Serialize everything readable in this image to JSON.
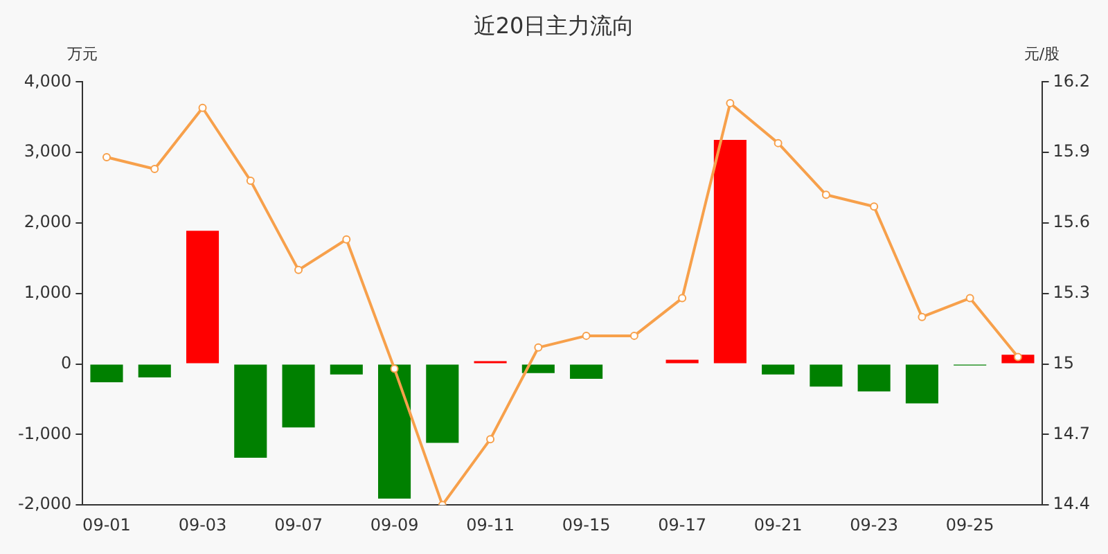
{
  "chart_data": {
    "type": "bar",
    "title": "近20日主力流向",
    "ylabel": "万元",
    "y2label": "元/股",
    "categories": [
      "09-01",
      null,
      "09-03",
      null,
      "09-07",
      null,
      "09-09",
      null,
      "09-11",
      null,
      "09-15",
      null,
      "09-17",
      null,
      "09-21",
      null,
      "09-23",
      null,
      "09-25",
      null
    ],
    "series": [
      {
        "values": [
          -260,
          -190,
          1890,
          -1330,
          -900,
          -150,
          -1910,
          -1120,
          40,
          -130,
          -210,
          null,
          60,
          3180,
          -150,
          -320,
          -390,
          -560,
          -20,
          130
        ],
        "colors": [
          "#008000",
          "#008000",
          "#ff0000",
          "#008000",
          "#008000",
          "#008000",
          "#008000",
          "#008000",
          "#ff0000",
          "#008000",
          "#008000",
          "#008000",
          "#ff0000",
          "#ff0000",
          "#008000",
          "#008000",
          "#008000",
          "#008000",
          "#008000",
          "#ff0000"
        ]
      },
      {
        "type": "line",
        "axis": "y2",
        "color": "#f7a04b",
        "marker": "circle",
        "values": [
          15.88,
          15.83,
          16.09,
          15.78,
          15.4,
          15.53,
          14.98,
          14.4,
          14.68,
          15.07,
          15.12,
          15.12,
          15.28,
          16.11,
          15.94,
          15.72,
          15.67,
          15.2,
          15.28,
          15.03
        ]
      }
    ],
    "ylim": [
      -2000,
      4000
    ],
    "yticks": [
      {
        "value": -2000,
        "label": "-2,000"
      },
      {
        "value": -1000,
        "label": "-1,000"
      },
      0,
      {
        "value": 1000,
        "label": "1,000"
      },
      {
        "value": 2000,
        "label": "2,000"
      },
      {
        "value": 3000,
        "label": "3,000"
      },
      {
        "value": 4000,
        "label": "4,000"
      }
    ],
    "y2lim": [
      14.4,
      16.2
    ],
    "y2ticks": [
      14.4,
      14.7,
      15,
      15.3,
      15.6,
      15.9,
      16.2
    ],
    "grid": false,
    "legend": false
  }
}
